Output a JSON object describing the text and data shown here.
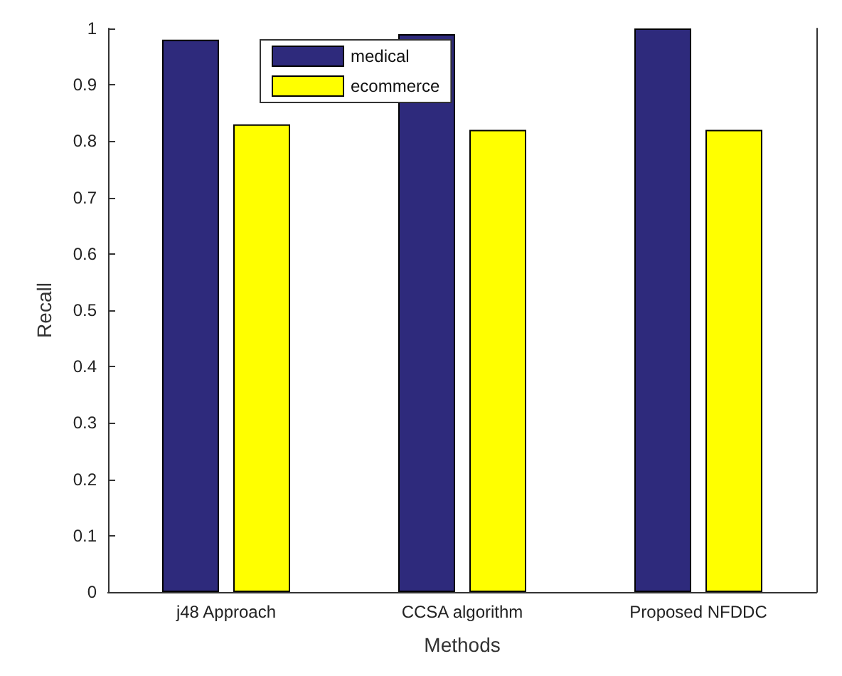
{
  "chart_data": {
    "type": "bar",
    "xlabel": "Methods",
    "ylabel": "Recall",
    "categories": [
      "j48 Approach",
      "CCSA algorithm",
      "Proposed NFDDC"
    ],
    "series": [
      {
        "name": "medical",
        "color": "#2e2a7c",
        "values": [
          0.98,
          0.99,
          1.0
        ]
      },
      {
        "name": "ecommerce",
        "color": "#ffff00",
        "values": [
          0.83,
          0.82,
          0.82
        ]
      }
    ],
    "ylim": [
      0,
      1
    ],
    "yticks": [
      0,
      0.1,
      0.2,
      0.3,
      0.4,
      0.5,
      0.6,
      0.7,
      0.8,
      0.9,
      1
    ],
    "grid": false,
    "legend": "top"
  }
}
